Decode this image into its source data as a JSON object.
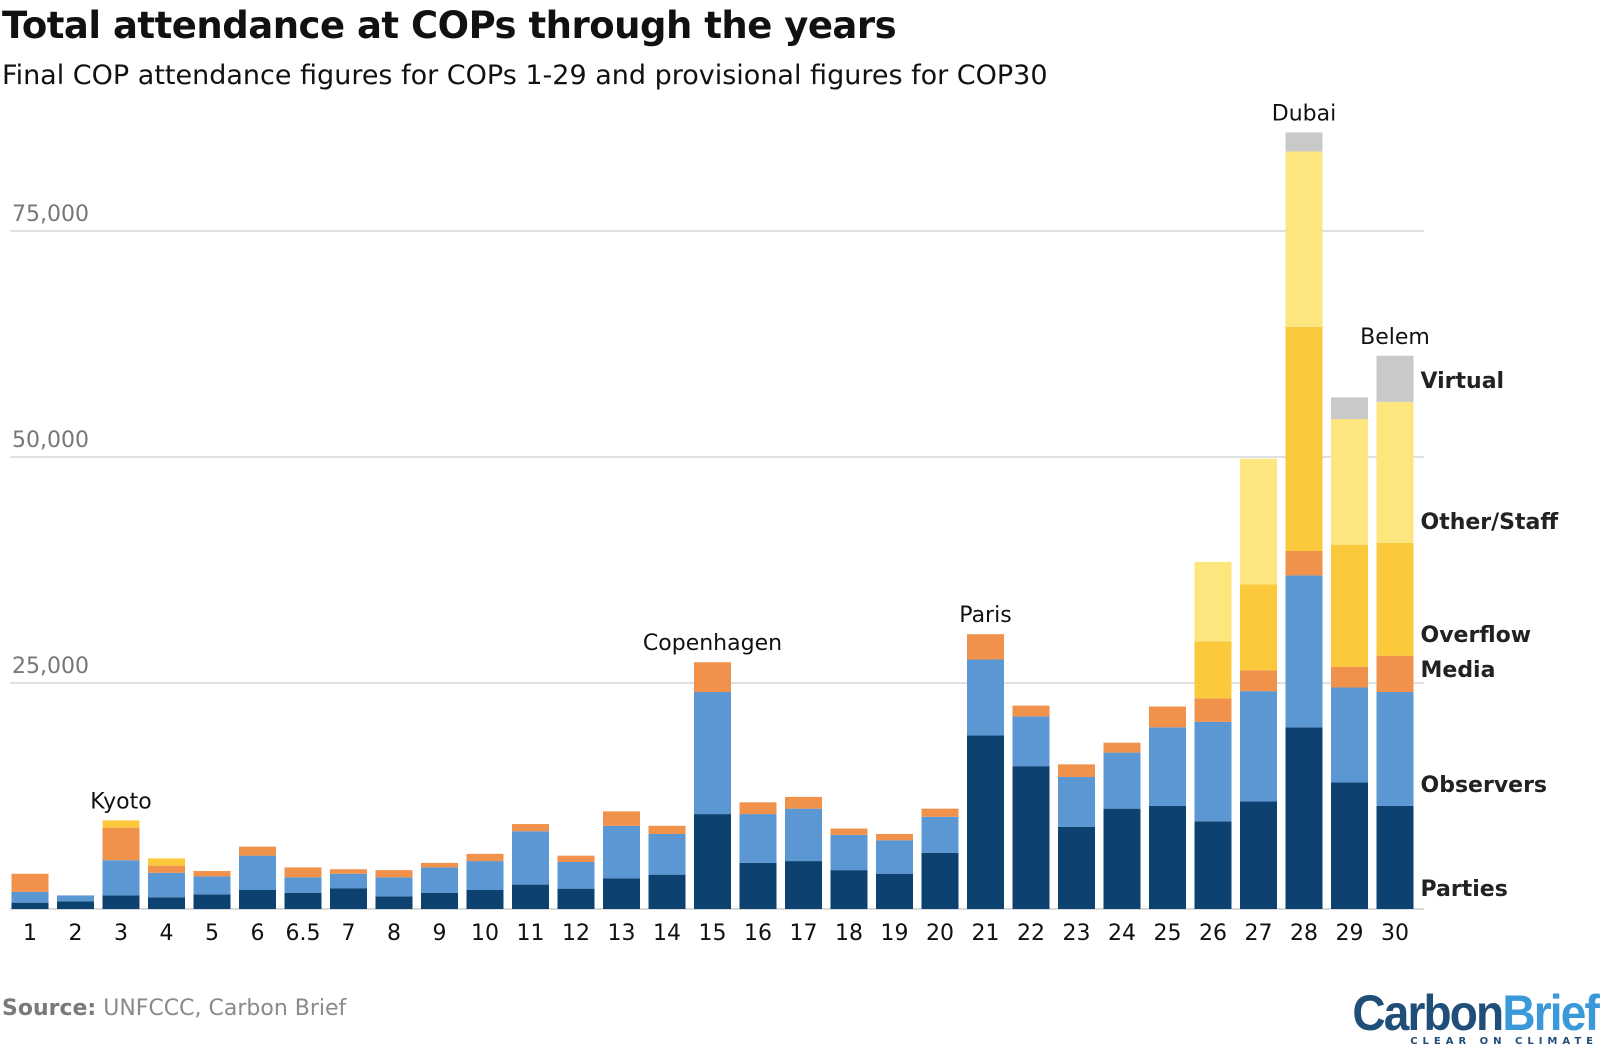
{
  "title": "Total attendance at COPs through the years",
  "subtitle": "Final COP attendance figures for COPs 1-29 and provisional figures for COP30",
  "source_label": "Source:",
  "source_text": " UNFCCC, Carbon Brief",
  "logo": {
    "carbon": "Carbon",
    "brief": "Brief",
    "tagline": "CLEAR ON CLIMATE"
  },
  "chart_data": {
    "type": "bar",
    "stacked": true,
    "categories": [
      "1",
      "2",
      "3",
      "4",
      "5",
      "6",
      "6.5",
      "7",
      "8",
      "9",
      "10",
      "11",
      "12",
      "13",
      "14",
      "15",
      "16",
      "17",
      "18",
      "19",
      "20",
      "21",
      "22",
      "23",
      "24",
      "25",
      "26",
      "27",
      "28",
      "29",
      "30"
    ],
    "series": [
      {
        "name": "Parties",
        "color": "#0c4170",
        "values": [
          700,
          850,
          1500,
          1300,
          1600,
          2100,
          1800,
          2300,
          1400,
          1800,
          2100,
          2700,
          2250,
          3400,
          3800,
          10500,
          5100,
          5300,
          4300,
          3900,
          6200,
          19200,
          15800,
          9100,
          11100,
          11400,
          9700,
          11900,
          20100,
          14000,
          11400
        ]
      },
      {
        "name": "Observers",
        "color": "#5b97d2",
        "values": [
          1200,
          650,
          3900,
          2700,
          2000,
          3800,
          1700,
          1600,
          2100,
          2800,
          3200,
          5900,
          2950,
          5800,
          4500,
          13500,
          5400,
          5800,
          3900,
          3700,
          4000,
          8400,
          5500,
          5500,
          6200,
          8700,
          11000,
          12200,
          16800,
          10500,
          12600
        ]
      },
      {
        "name": "Media",
        "color": "#f0924b",
        "values": [
          2000,
          0,
          3600,
          800,
          600,
          1000,
          1100,
          500,
          800,
          500,
          800,
          800,
          700,
          1600,
          900,
          3300,
          1300,
          1300,
          700,
          700,
          900,
          2800,
          1200,
          1400,
          1100,
          2300,
          2600,
          2300,
          2700,
          2300,
          4000
        ]
      },
      {
        "name": "Overflow",
        "color": "#fcc83c",
        "values": [
          0,
          0,
          800,
          800,
          0,
          0,
          0,
          0,
          0,
          0,
          0,
          0,
          0,
          0,
          0,
          0,
          0,
          0,
          0,
          0,
          0,
          0,
          0,
          0,
          0,
          0,
          6300,
          9500,
          24800,
          13500,
          12500
        ]
      },
      {
        "name": "Other/Staff",
        "color": "#fde67e",
        "values": [
          0,
          0,
          0,
          0,
          0,
          0,
          0,
          0,
          0,
          0,
          0,
          0,
          0,
          0,
          0,
          0,
          0,
          0,
          0,
          0,
          0,
          0,
          0,
          0,
          0,
          0,
          8800,
          13900,
          19400,
          13900,
          15600
        ]
      },
      {
        "name": "Virtual",
        "color": "#c9c9c9",
        "values": [
          0,
          0,
          0,
          0,
          0,
          0,
          0,
          0,
          0,
          0,
          0,
          0,
          0,
          0,
          0,
          0,
          0,
          0,
          0,
          0,
          0,
          0,
          0,
          0,
          0,
          0,
          0,
          0,
          2100,
          2400,
          5100
        ]
      }
    ],
    "yticks": [
      25000,
      50000,
      75000
    ],
    "ytick_labels": [
      "25,000",
      "50,000",
      "75,000"
    ],
    "ylim": [
      0,
      90000
    ],
    "grid": true,
    "legend": "right, direct labels",
    "annotations": [
      {
        "category": "3",
        "text": "Kyoto"
      },
      {
        "category": "15",
        "text": "Copenhagen"
      },
      {
        "category": "21",
        "text": "Paris"
      },
      {
        "category": "28",
        "text": "Dubai"
      },
      {
        "category": "30",
        "text": "Belem"
      }
    ]
  }
}
